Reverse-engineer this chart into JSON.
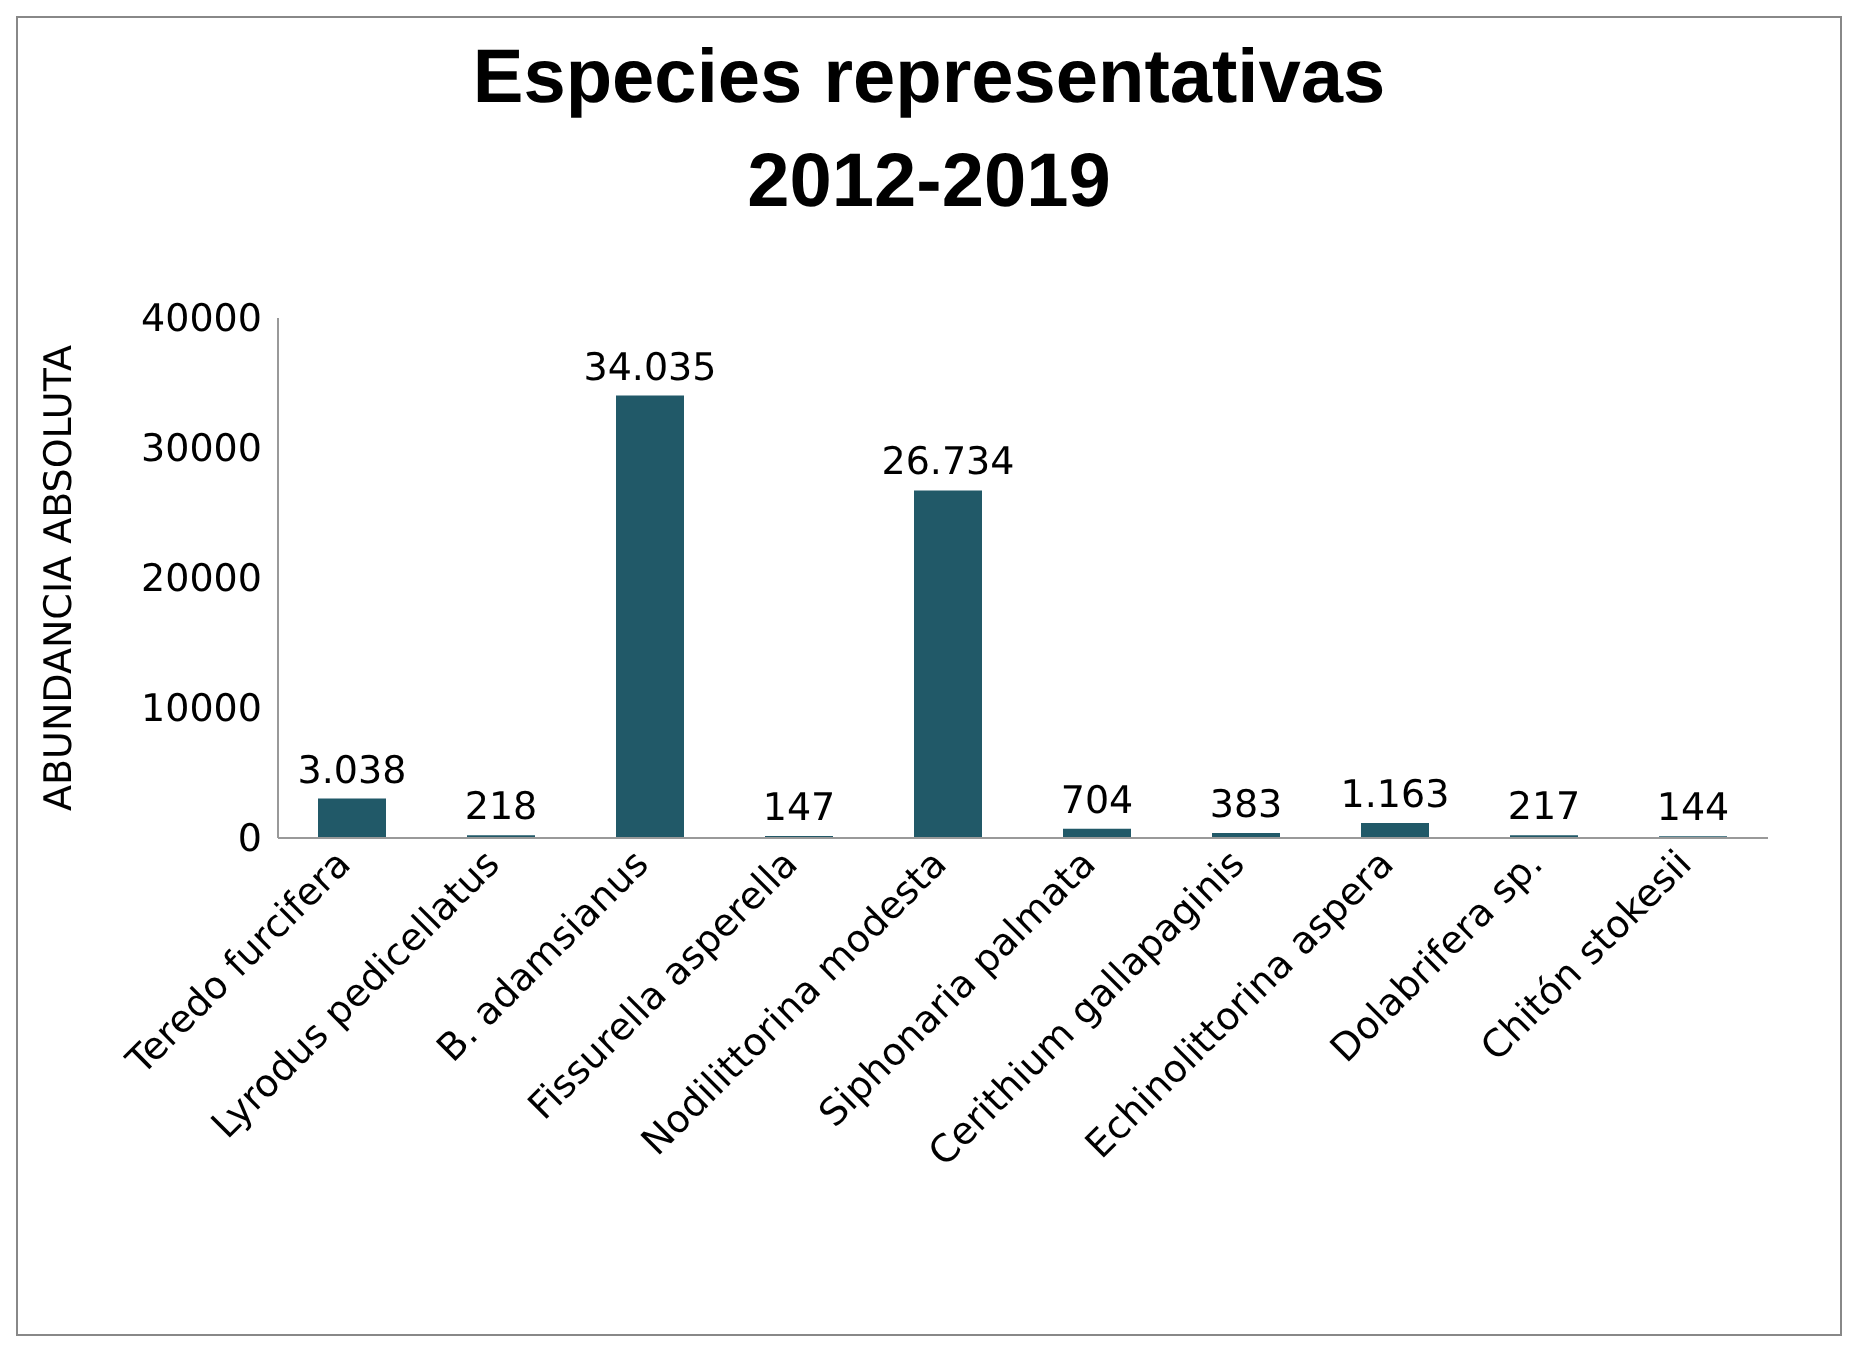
{
  "chart_data": {
    "type": "bar",
    "title": "Especies representativas 2012-2019",
    "ylabel": "ABUNDANCIA ABSOLUTA",
    "categories": [
      "Teredo furcifera",
      "Lyrodus pedicellatus",
      "B. adamsianus",
      "Fissurella asperella",
      "Nodilittorina modesta",
      "Siphonaria palmata",
      "Cerithium gallapaginis",
      "Echinolittorina aspera",
      "Dolabrifera sp.",
      "Chitón stokesii"
    ],
    "values": [
      3038,
      218,
      34035,
      147,
      26734,
      704,
      383,
      1163,
      217,
      144
    ],
    "value_labels": [
      "3.038",
      "218",
      "34.035",
      "147",
      "26.734",
      "704",
      "383",
      "1.163",
      "217",
      "144"
    ],
    "color": "#215968",
    "ylim": [
      0,
      40000
    ],
    "yticks": [
      0,
      10000,
      20000,
      30000,
      40000
    ],
    "grid": false
  }
}
